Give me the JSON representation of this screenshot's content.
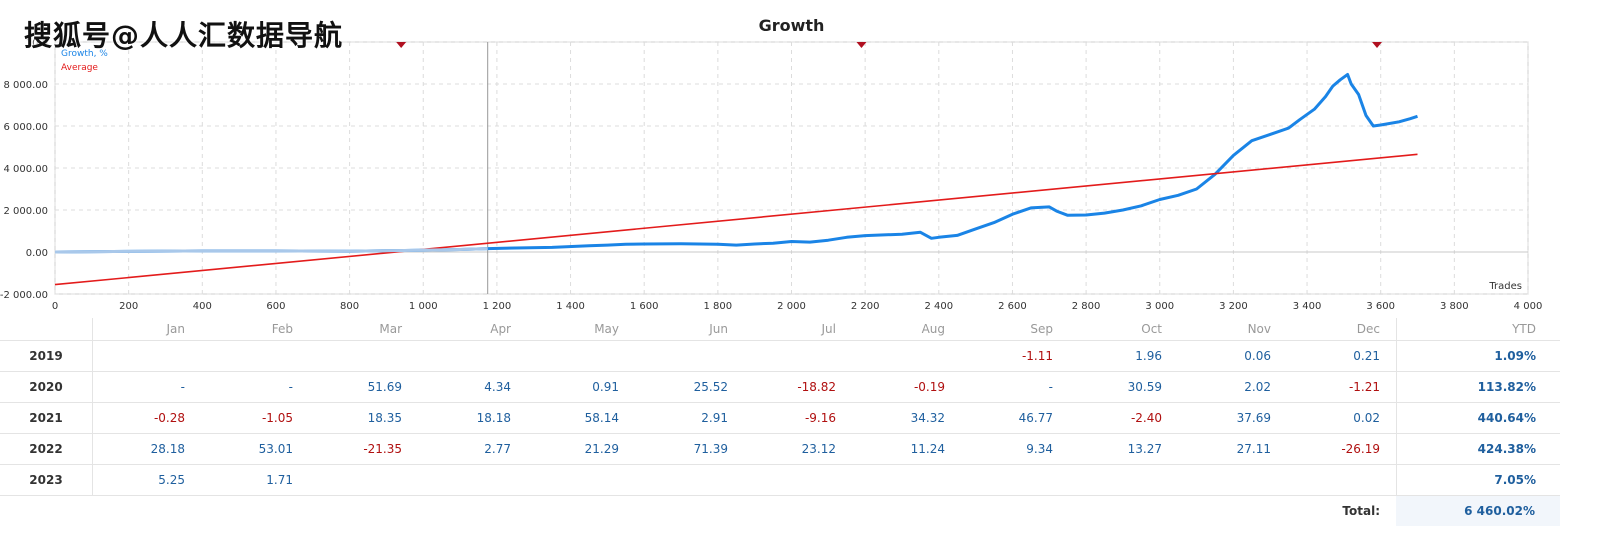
{
  "watermark_text": "搜狐号@人人汇数据导航",
  "chart_data": {
    "type": "line",
    "title": "Growth",
    "xlabel": "Trades",
    "ylabel": "",
    "xlim": [
      0,
      4000
    ],
    "ylim": [
      -2000,
      10000
    ],
    "x_ticks": [
      0,
      200,
      400,
      600,
      800,
      1000,
      1200,
      1400,
      1600,
      1800,
      2000,
      2200,
      2400,
      2600,
      2800,
      3000,
      3200,
      3400,
      3600,
      3800,
      4000
    ],
    "x_tick_labels": [
      "0",
      "200",
      "400",
      "600",
      "800",
      "1 000",
      "1 200",
      "1 400",
      "1 600",
      "1 800",
      "2 000",
      "2 200",
      "2 400",
      "2 600",
      "2 800",
      "3 000",
      "3 200",
      "3 400",
      "3 600",
      "3 800",
      "4 000"
    ],
    "y_ticks": [
      -2000,
      0,
      2000,
      4000,
      6000,
      8000,
      10000
    ],
    "y_tick_labels": [
      "-2 000.00",
      "0.00",
      "2 000.00",
      "4 000.00",
      "6 000.00",
      "8 000.00",
      "10 0"
    ],
    "grid": true,
    "legend_position": "top-left",
    "vertical_marker_x": 1175,
    "event_markers_x": [
      940,
      2190,
      3590
    ],
    "series": [
      {
        "name": "Growth, %",
        "color": "#1a84e6",
        "x": [
          0,
          200,
          400,
          600,
          800,
          950,
          1100,
          1175,
          1250,
          1350,
          1450,
          1500,
          1550,
          1600,
          1700,
          1800,
          1850,
          1900,
          1950,
          2000,
          2050,
          2100,
          2150,
          2200,
          2300,
          2350,
          2380,
          2400,
          2450,
          2500,
          2550,
          2600,
          2650,
          2700,
          2720,
          2750,
          2800,
          2850,
          2900,
          2950,
          3000,
          3050,
          3100,
          3150,
          3200,
          3250,
          3300,
          3350,
          3380,
          3420,
          3450,
          3470,
          3490,
          3510,
          3520,
          3540,
          3560,
          3580,
          3600,
          3650,
          3680,
          3700
        ],
        "y": [
          0,
          30,
          50,
          50,
          40,
          70,
          120,
          160,
          190,
          220,
          300,
          330,
          370,
          380,
          390,
          370,
          330,
          380,
          420,
          500,
          470,
          560,
          700,
          780,
          850,
          940,
          650,
          700,
          790,
          1100,
          1400,
          1800,
          2100,
          2150,
          1950,
          1750,
          1760,
          1850,
          2000,
          2200,
          2500,
          2700,
          3000,
          3700,
          4600,
          5300,
          5600,
          5900,
          6300,
          6800,
          7400,
          7900,
          8200,
          8450,
          8000,
          7500,
          6500,
          6000,
          6050,
          6200,
          6350,
          6460
        ]
      },
      {
        "name": "Average",
        "color": "#e31b1b",
        "x": [
          0,
          3700
        ],
        "y": [
          -1550,
          4650
        ]
      }
    ]
  },
  "table": {
    "months": [
      "Jan",
      "Feb",
      "Mar",
      "Apr",
      "May",
      "Jun",
      "Jul",
      "Aug",
      "Sep",
      "Oct",
      "Nov",
      "Dec"
    ],
    "ytd_header": "YTD",
    "rows": [
      {
        "year": "2019",
        "values": [
          "",
          "",
          "",
          "",
          "",
          "",
          "",
          "",
          "-1.11",
          "1.96",
          "0.06",
          "0.21"
        ],
        "ytd": "1.09%"
      },
      {
        "year": "2020",
        "values": [
          "-",
          "-",
          "51.69",
          "4.34",
          "0.91",
          "25.52",
          "-18.82",
          "-0.19",
          "-",
          "30.59",
          "2.02",
          "-1.21"
        ],
        "ytd": "113.82%"
      },
      {
        "year": "2021",
        "values": [
          "-0.28",
          "-1.05",
          "18.35",
          "18.18",
          "58.14",
          "2.91",
          "-9.16",
          "34.32",
          "46.77",
          "-2.40",
          "37.69",
          "0.02"
        ],
        "ytd": "440.64%"
      },
      {
        "year": "2022",
        "values": [
          "28.18",
          "53.01",
          "-21.35",
          "2.77",
          "21.29",
          "71.39",
          "23.12",
          "11.24",
          "9.34",
          "13.27",
          "27.11",
          "-26.19"
        ],
        "ytd": "424.38%"
      },
      {
        "year": "2023",
        "values": [
          "5.25",
          "1.71",
          "",
          "",
          "",
          "",
          "",
          "",
          "",
          "",
          "",
          ""
        ],
        "ytd": "7.05%"
      }
    ],
    "total_label": "Total:",
    "total_value": "6 460.02%"
  }
}
